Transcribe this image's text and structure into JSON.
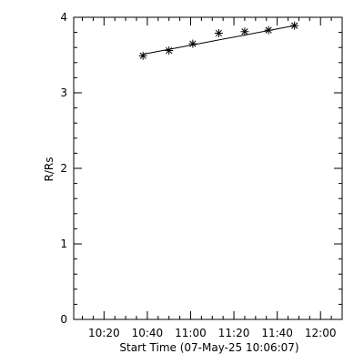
{
  "chart_data": {
    "type": "scatter",
    "title": "",
    "xlabel": "Start Time (07-May-25 10:06:07)",
    "ylabel": "R/Rs",
    "x_unit": "time of day (HH:MM)",
    "xlim": [
      "10:06",
      "12:10"
    ],
    "ylim": [
      0,
      4
    ],
    "x_tick_labels": [
      "10:20",
      "10:40",
      "11:00",
      "11:20",
      "11:40",
      "12:00"
    ],
    "x_tick_values": [
      "10:20",
      "10:40",
      "11:00",
      "11:20",
      "11:40",
      "12:00"
    ],
    "y_tick_labels": [
      "0",
      "1",
      "2",
      "3",
      "4"
    ],
    "y_tick_values": [
      0,
      1,
      2,
      3,
      4
    ],
    "grid": false,
    "legend": "none",
    "marker": "asterisk",
    "color": "#000000",
    "series": [
      {
        "x": [
          "10:38",
          "10:50",
          "11:01",
          "11:13",
          "11:25",
          "11:36",
          "11:48"
        ],
        "y": [
          3.49,
          3.56,
          3.65,
          3.79,
          3.81,
          3.83,
          3.89
        ]
      }
    ],
    "fit_line": {
      "x": [
        "10:38",
        "11:48"
      ],
      "y": [
        3.51,
        3.89
      ]
    }
  }
}
